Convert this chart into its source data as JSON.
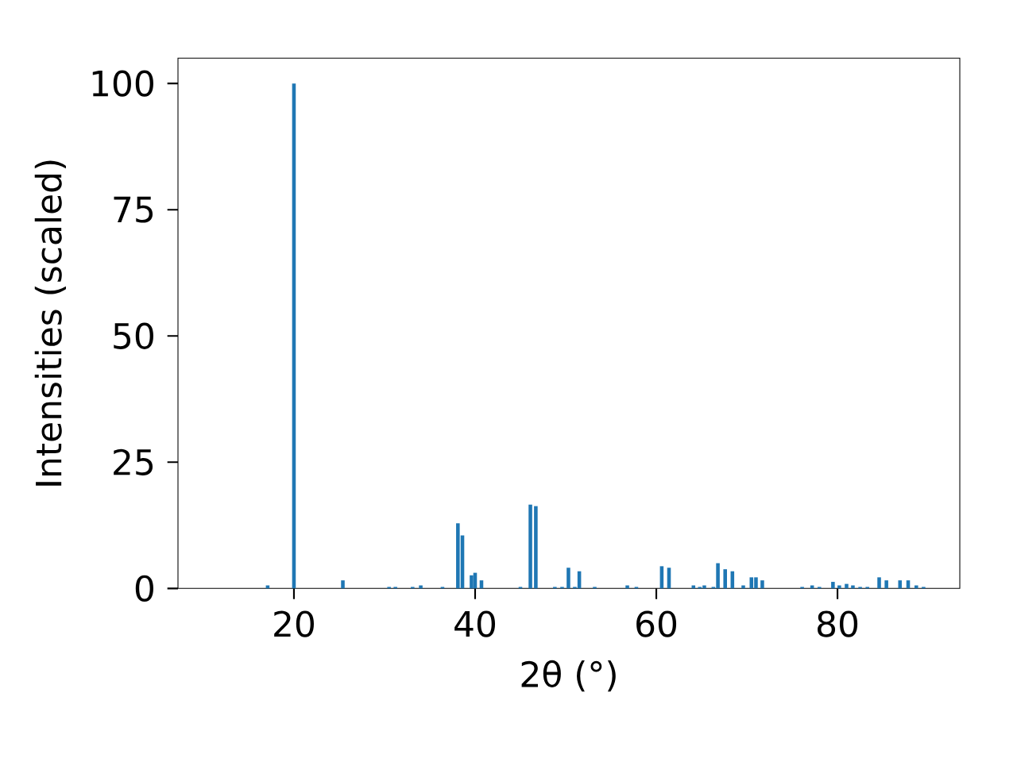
{
  "chart_data": {
    "type": "bar",
    "xlabel": "2θ (°)",
    "ylabel": "Intensities (scaled)",
    "color": "#1f77b4",
    "x": [
      17.1,
      20.0,
      25.4,
      30.5,
      31.2,
      33.1,
      34.0,
      36.4,
      38.1,
      38.6,
      39.6,
      40.0,
      40.7,
      45.0,
      46.1,
      46.7,
      48.8,
      49.6,
      50.3,
      51.0,
      51.5,
      53.2,
      56.8,
      57.8,
      60.6,
      61.4,
      64.1,
      64.8,
      65.3,
      66.3,
      66.8,
      67.6,
      68.4,
      69.6,
      70.5,
      71.0,
      71.7,
      76.1,
      77.2,
      78.0,
      79.5,
      80.2,
      81.0,
      81.7,
      82.5,
      83.3,
      84.6,
      85.4,
      86.9,
      87.8,
      88.7,
      89.5
    ],
    "values": [
      0.6,
      100,
      1.6,
      0.3,
      0.3,
      0.3,
      0.6,
      0.3,
      12.9,
      10.5,
      2.6,
      3.1,
      1.6,
      0.3,
      16.6,
      16.3,
      0.3,
      0.3,
      4.1,
      0.3,
      3.4,
      0.3,
      0.6,
      0.3,
      4.4,
      4.1,
      0.6,
      0.3,
      0.6,
      0.3,
      5.0,
      3.8,
      3.4,
      0.6,
      2.2,
      2.2,
      1.6,
      0.3,
      0.6,
      0.3,
      1.3,
      0.6,
      0.9,
      0.6,
      0.3,
      0.3,
      2.2,
      1.6,
      1.6,
      1.6,
      0.6,
      0.3
    ],
    "xlim": [
      7.2,
      93.5
    ],
    "ylim": [
      0,
      105
    ],
    "xticks": [
      20,
      40,
      60,
      80
    ],
    "yticks": [
      0,
      25,
      50,
      75,
      100
    ]
  }
}
